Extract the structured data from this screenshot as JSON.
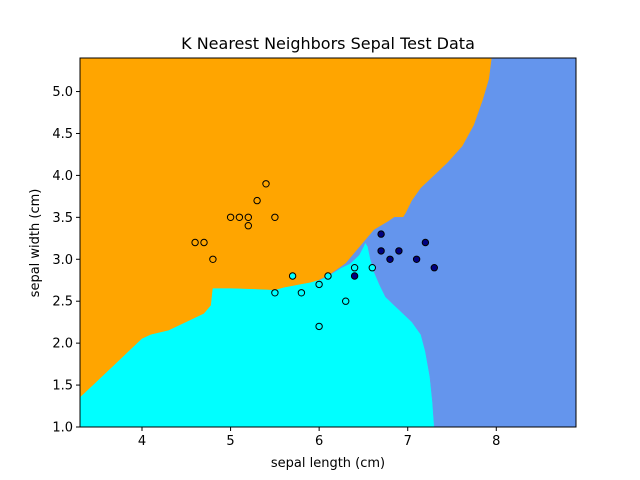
{
  "chart_data": {
    "type": "scatter",
    "title": "K Nearest Neighbors Sepal Test Data",
    "xlabel": "sepal length (cm)",
    "ylabel": "sepal width (cm)",
    "xlim": [
      3.3,
      8.9
    ],
    "ylim": [
      1.0,
      5.4
    ],
    "xticks": [
      4,
      5,
      6,
      7,
      8
    ],
    "xtick_labels": [
      "4",
      "5",
      "6",
      "7",
      "8"
    ],
    "yticks": [
      1.0,
      1.5,
      2.0,
      2.5,
      3.0,
      3.5,
      4.0,
      4.5,
      5.0
    ],
    "ytick_labels": [
      "1.0",
      "1.5",
      "2.0",
      "2.5",
      "3.0",
      "3.5",
      "4.0",
      "4.5",
      "5.0"
    ],
    "grid": false,
    "regions": [
      {
        "class_color": "#ffa500",
        "polygon": [
          [
            3.3,
            5.4
          ],
          [
            7.95,
            5.4
          ],
          [
            7.92,
            5.15
          ],
          [
            7.85,
            4.9
          ],
          [
            7.75,
            4.6
          ],
          [
            7.62,
            4.35
          ],
          [
            7.45,
            4.15
          ],
          [
            7.3,
            4.0
          ],
          [
            7.15,
            3.85
          ],
          [
            7.05,
            3.7
          ],
          [
            6.98,
            3.55
          ],
          [
            6.95,
            3.5
          ],
          [
            6.85,
            3.5
          ],
          [
            6.78,
            3.45
          ],
          [
            6.7,
            3.4
          ],
          [
            6.62,
            3.35
          ],
          [
            6.55,
            3.25
          ],
          [
            6.5,
            3.15
          ],
          [
            6.45,
            3.05
          ],
          [
            6.4,
            3.0
          ],
          [
            6.35,
            2.95
          ],
          [
            6.25,
            2.9
          ],
          [
            6.1,
            2.8
          ],
          [
            6.0,
            2.75
          ],
          [
            5.9,
            2.72
          ],
          [
            5.8,
            2.7
          ],
          [
            5.7,
            2.68
          ],
          [
            5.6,
            2.66
          ],
          [
            5.5,
            2.63
          ],
          [
            5.3,
            2.64
          ],
          [
            5.0,
            2.65
          ],
          [
            4.8,
            2.65
          ],
          [
            4.78,
            2.45
          ],
          [
            4.7,
            2.35
          ],
          [
            4.5,
            2.25
          ],
          [
            4.3,
            2.15
          ],
          [
            4.1,
            2.1
          ],
          [
            4.0,
            2.05
          ],
          [
            3.9,
            1.95
          ],
          [
            3.75,
            1.8
          ],
          [
            3.6,
            1.65
          ],
          [
            3.45,
            1.5
          ],
          [
            3.3,
            1.35
          ]
        ]
      },
      {
        "class_color": "#00ffff",
        "polygon": [
          [
            3.3,
            1.0
          ],
          [
            3.3,
            1.35
          ],
          [
            3.45,
            1.5
          ],
          [
            3.6,
            1.65
          ],
          [
            3.75,
            1.8
          ],
          [
            3.9,
            1.95
          ],
          [
            4.0,
            2.05
          ],
          [
            4.1,
            2.1
          ],
          [
            4.3,
            2.15
          ],
          [
            4.5,
            2.25
          ],
          [
            4.7,
            2.35
          ],
          [
            4.78,
            2.45
          ],
          [
            4.8,
            2.65
          ],
          [
            5.0,
            2.65
          ],
          [
            5.3,
            2.64
          ],
          [
            5.5,
            2.63
          ],
          [
            5.6,
            2.66
          ],
          [
            5.7,
            2.68
          ],
          [
            5.8,
            2.7
          ],
          [
            5.9,
            2.72
          ],
          [
            6.0,
            2.75
          ],
          [
            6.1,
            2.8
          ],
          [
            6.25,
            2.9
          ],
          [
            6.35,
            2.95
          ],
          [
            6.4,
            3.0
          ],
          [
            6.45,
            3.05
          ],
          [
            6.5,
            3.15
          ],
          [
            6.52,
            3.2
          ],
          [
            6.55,
            3.15
          ],
          [
            6.58,
            3.0
          ],
          [
            6.62,
            2.85
          ],
          [
            6.68,
            2.7
          ],
          [
            6.75,
            2.55
          ],
          [
            6.85,
            2.45
          ],
          [
            6.95,
            2.35
          ],
          [
            7.05,
            2.25
          ],
          [
            7.15,
            2.1
          ],
          [
            7.2,
            1.9
          ],
          [
            7.25,
            1.6
          ],
          [
            7.28,
            1.3
          ],
          [
            7.3,
            1.0
          ]
        ]
      },
      {
        "class_color": "#6495ed",
        "polygon": [
          [
            7.95,
            5.4
          ],
          [
            8.9,
            5.4
          ],
          [
            8.9,
            1.0
          ],
          [
            7.3,
            1.0
          ],
          [
            7.28,
            1.3
          ],
          [
            7.25,
            1.6
          ],
          [
            7.2,
            1.9
          ],
          [
            7.15,
            2.1
          ],
          [
            7.05,
            2.25
          ],
          [
            6.95,
            2.35
          ],
          [
            6.85,
            2.45
          ],
          [
            6.75,
            2.55
          ],
          [
            6.68,
            2.7
          ],
          [
            6.62,
            2.85
          ],
          [
            6.58,
            3.0
          ],
          [
            6.55,
            3.15
          ],
          [
            6.52,
            3.2
          ],
          [
            6.5,
            3.15
          ],
          [
            6.45,
            3.05
          ],
          [
            6.4,
            3.0
          ],
          [
            6.35,
            2.95
          ],
          [
            6.25,
            2.9
          ],
          [
            6.1,
            2.8
          ],
          [
            6.0,
            2.75
          ],
          [
            6.0,
            2.75
          ],
          [
            6.1,
            2.8
          ],
          [
            6.3,
            2.95
          ],
          [
            6.5,
            3.2
          ],
          [
            6.62,
            3.35
          ],
          [
            6.7,
            3.4
          ],
          [
            6.78,
            3.45
          ],
          [
            6.85,
            3.5
          ],
          [
            6.95,
            3.5
          ],
          [
            6.98,
            3.55
          ],
          [
            7.05,
            3.7
          ],
          [
            7.15,
            3.85
          ],
          [
            7.3,
            4.0
          ],
          [
            7.45,
            4.15
          ],
          [
            7.62,
            4.35
          ],
          [
            7.75,
            4.6
          ],
          [
            7.85,
            4.9
          ],
          [
            7.92,
            5.15
          ]
        ]
      }
    ],
    "series": [
      {
        "fill": "#ffa500",
        "points": [
          [
            5.4,
            3.9
          ],
          [
            5.3,
            3.7
          ],
          [
            5.0,
            3.5
          ],
          [
            5.1,
            3.5
          ],
          [
            5.2,
            3.5
          ],
          [
            5.5,
            3.5
          ],
          [
            5.2,
            3.4
          ],
          [
            4.6,
            3.2
          ],
          [
            4.7,
            3.2
          ],
          [
            4.8,
            3.0
          ]
        ]
      },
      {
        "fill": "#00ffff",
        "points": [
          [
            5.7,
            2.8
          ],
          [
            6.1,
            2.8
          ],
          [
            6.4,
            2.9
          ],
          [
            6.6,
            2.9
          ],
          [
            5.5,
            2.6
          ],
          [
            5.8,
            2.6
          ],
          [
            6.0,
            2.7
          ],
          [
            6.3,
            2.5
          ],
          [
            6.0,
            2.2
          ]
        ]
      },
      {
        "fill": "#000080",
        "points": [
          [
            6.7,
            3.3
          ],
          [
            6.7,
            3.1
          ],
          [
            6.9,
            3.1
          ],
          [
            6.8,
            3.0
          ],
          [
            7.2,
            3.2
          ],
          [
            7.1,
            3.0
          ],
          [
            7.3,
            2.9
          ],
          [
            6.4,
            2.8
          ]
        ]
      }
    ]
  }
}
